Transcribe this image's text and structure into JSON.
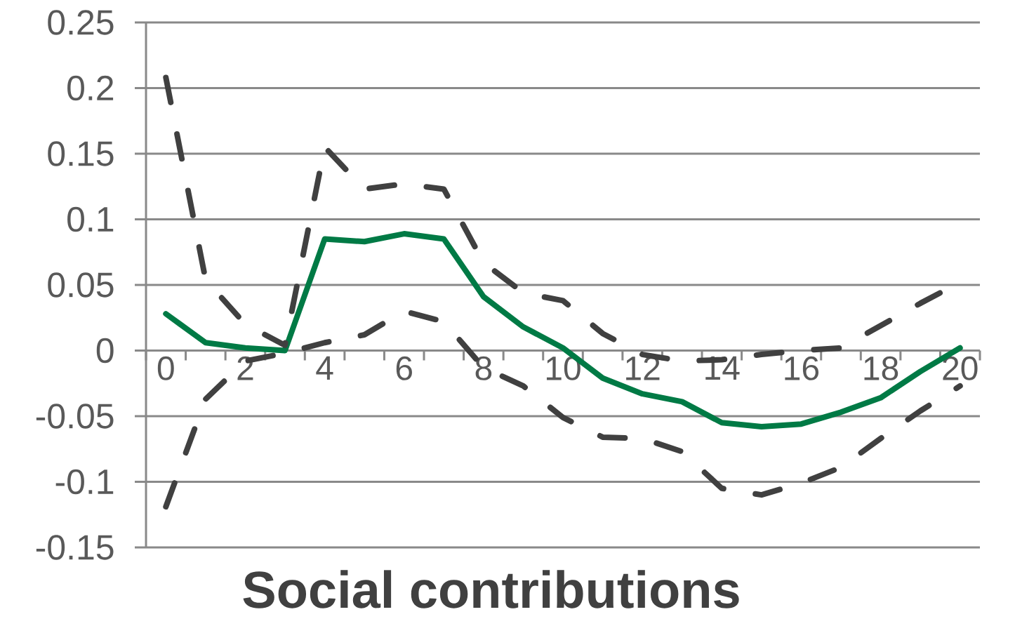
{
  "chart_data": {
    "type": "line",
    "title": "Social contributions",
    "categories": [
      "0",
      null,
      "2",
      null,
      "4",
      null,
      "6",
      null,
      "8",
      null,
      "10",
      null,
      "12",
      null,
      "14",
      null,
      "16",
      null,
      "18",
      null,
      "20"
    ],
    "series": [
      {
        "color": "#007a45",
        "values": [
          0.028,
          0.006,
          0.002,
          0,
          0.085,
          0.083,
          0.089,
          0.085,
          0.041,
          0.018,
          0.002,
          -0.021,
          -0.033,
          -0.039,
          -0.055,
          -0.058,
          -0.056,
          -0.047,
          -0.036,
          -0.016,
          0.002
        ]
      },
      {
        "color": "#404040",
        "line_style": "dashed",
        "values": [
          0.208,
          0.054,
          0.02,
          0.004,
          0.155,
          0.123,
          0.127,
          0.123,
          0.067,
          0.044,
          0.038,
          0.013,
          -0.003,
          -0.008,
          -0.007,
          -0.003,
          0,
          0.002,
          0.019,
          0.036,
          0.052
        ]
      },
      {
        "color": "#404040",
        "line_style": "dashed",
        "values": [
          -0.119,
          -0.037,
          -0.008,
          -0.002,
          0.006,
          0.012,
          0.03,
          0.022,
          -0.013,
          -0.027,
          -0.051,
          -0.066,
          -0.067,
          -0.077,
          -0.105,
          -0.11,
          -0.101,
          -0.089,
          -0.067,
          -0.046,
          -0.027
        ]
      }
    ],
    "ylim": [
      -0.15,
      0.25
    ],
    "yticks": [
      -0.15,
      -0.1,
      -0.05,
      0,
      0.05,
      0.1,
      0.15,
      0.2,
      0.25
    ],
    "grid": "y"
  }
}
